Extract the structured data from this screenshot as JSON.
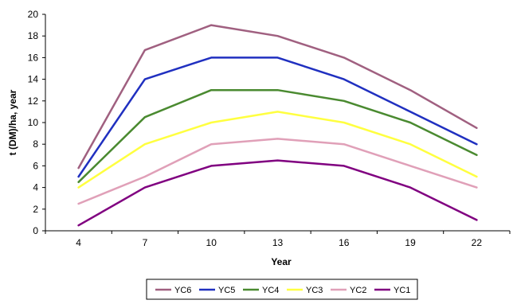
{
  "chart_data": {
    "type": "line",
    "title": "",
    "xlabel": "Year",
    "ylabel": "t (DM)/ha, year",
    "x": [
      4,
      7,
      10,
      13,
      16,
      19,
      22
    ],
    "ylim": [
      0,
      20
    ],
    "y_ticks": [
      0,
      2,
      4,
      6,
      8,
      10,
      12,
      14,
      16,
      18,
      20
    ],
    "grid": false,
    "legend_position": "bottom",
    "series": [
      {
        "name": "YC6",
        "color": "#a06080",
        "values": [
          5.8,
          16.7,
          19,
          18,
          16,
          13,
          9.5
        ]
      },
      {
        "name": "YC5",
        "color": "#2030c0",
        "values": [
          5,
          14,
          16,
          16,
          14,
          11,
          8
        ]
      },
      {
        "name": "YC4",
        "color": "#4a8a30",
        "values": [
          4.5,
          10.5,
          13,
          13,
          12,
          10,
          7
        ]
      },
      {
        "name": "YC3",
        "color": "#ffff40",
        "values": [
          4,
          8,
          10,
          11,
          10,
          8,
          5
        ]
      },
      {
        "name": "YC2",
        "color": "#e0a0b8",
        "values": [
          2.5,
          5,
          8,
          8.5,
          8,
          6,
          4
        ]
      },
      {
        "name": "YC1",
        "color": "#800080",
        "values": [
          0.5,
          4,
          6,
          6.5,
          6,
          4,
          1
        ]
      }
    ]
  }
}
